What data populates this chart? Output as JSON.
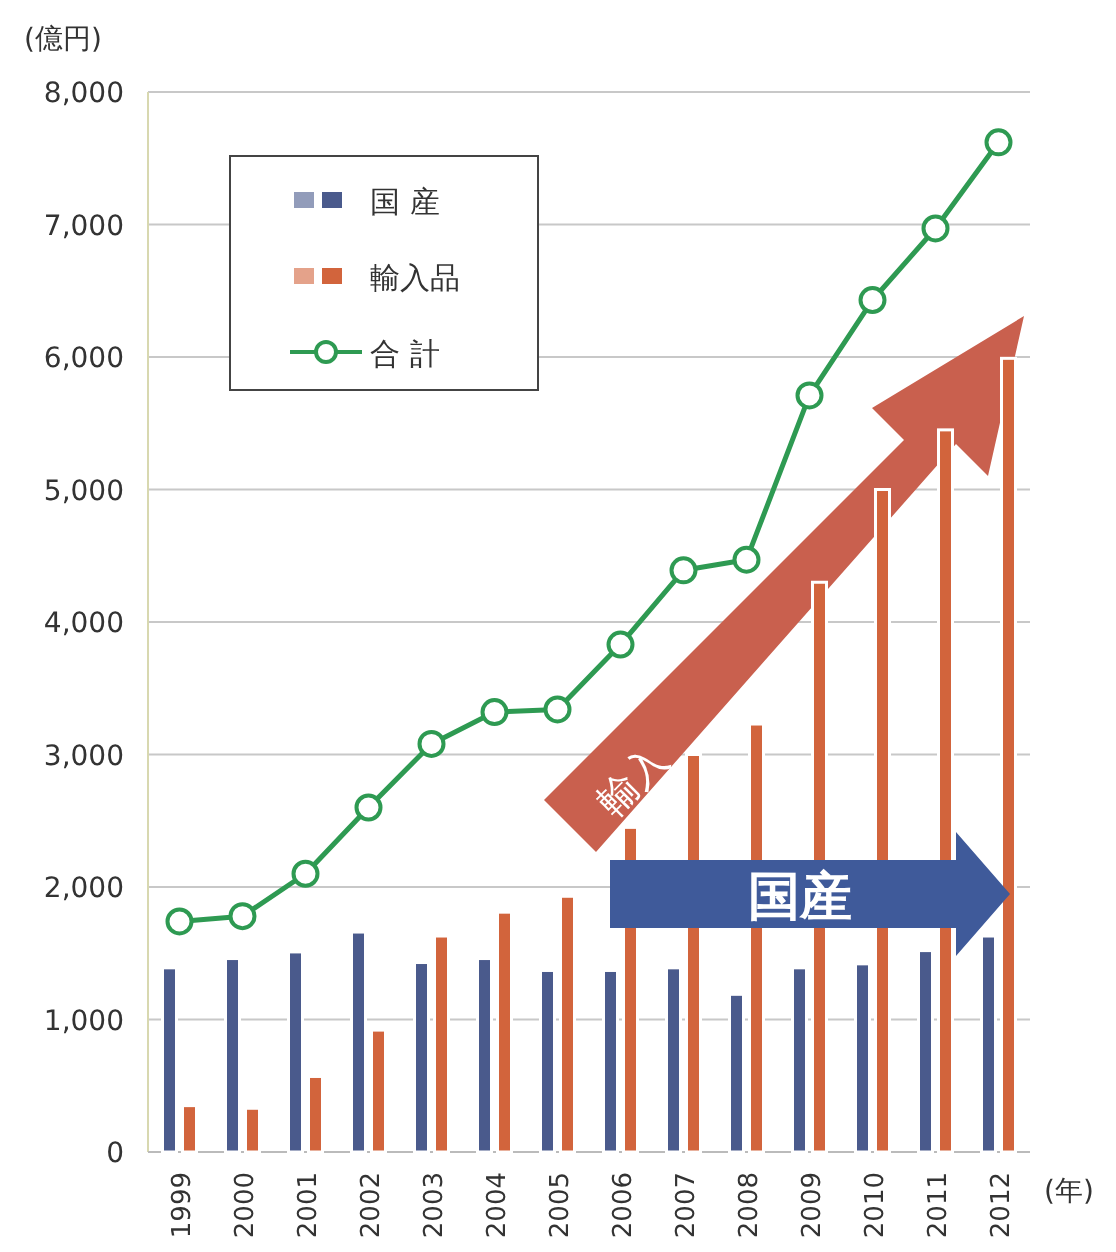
{
  "chart_data": {
    "type": "bar",
    "ylabel": "(億円)",
    "xlabel": "(年)",
    "categories": [
      "1999",
      "2000",
      "2001",
      "2002",
      "2003",
      "2004",
      "2005",
      "2006",
      "2007",
      "2008",
      "2009",
      "2010",
      "2011",
      "2012"
    ],
    "series": [
      {
        "name": "国 産",
        "type": "bar",
        "color": "#4a5a8c",
        "values": [
          1390,
          1460,
          1510,
          1660,
          1430,
          1460,
          1370,
          1370,
          1390,
          1190,
          1390,
          1420,
          1520,
          1630
        ]
      },
      {
        "name": "輸入品",
        "type": "bar",
        "color": "#d2643c",
        "values": [
          350,
          330,
          570,
          920,
          1630,
          1810,
          1930,
          2450,
          3000,
          3230,
          4300,
          5000,
          5450,
          5990
        ]
      },
      {
        "name": "合 計",
        "type": "line",
        "color": "#2e9a52",
        "marker": "circle",
        "values": [
          1740,
          1780,
          2100,
          2600,
          3080,
          3320,
          3340,
          3830,
          4390,
          4470,
          5710,
          6430,
          6970,
          7620
        ]
      }
    ],
    "ylim": [
      0,
      8000
    ],
    "yticks": [
      0,
      {
        "value": 1000,
        "label": "1,000"
      },
      {
        "value": 2000,
        "label": "2,000"
      },
      {
        "value": 3000,
        "label": "3,000"
      },
      {
        "value": 4000,
        "label": "4,000"
      },
      {
        "value": 5000,
        "label": "5,000"
      },
      {
        "value": 6000,
        "label": "6,000"
      },
      {
        "value": 7000,
        "label": "7,000"
      },
      {
        "value": 8000,
        "label": "8,000"
      }
    ],
    "grid": "y",
    "legend": "top left",
    "annotations": [
      "輸入",
      "国産"
    ]
  }
}
